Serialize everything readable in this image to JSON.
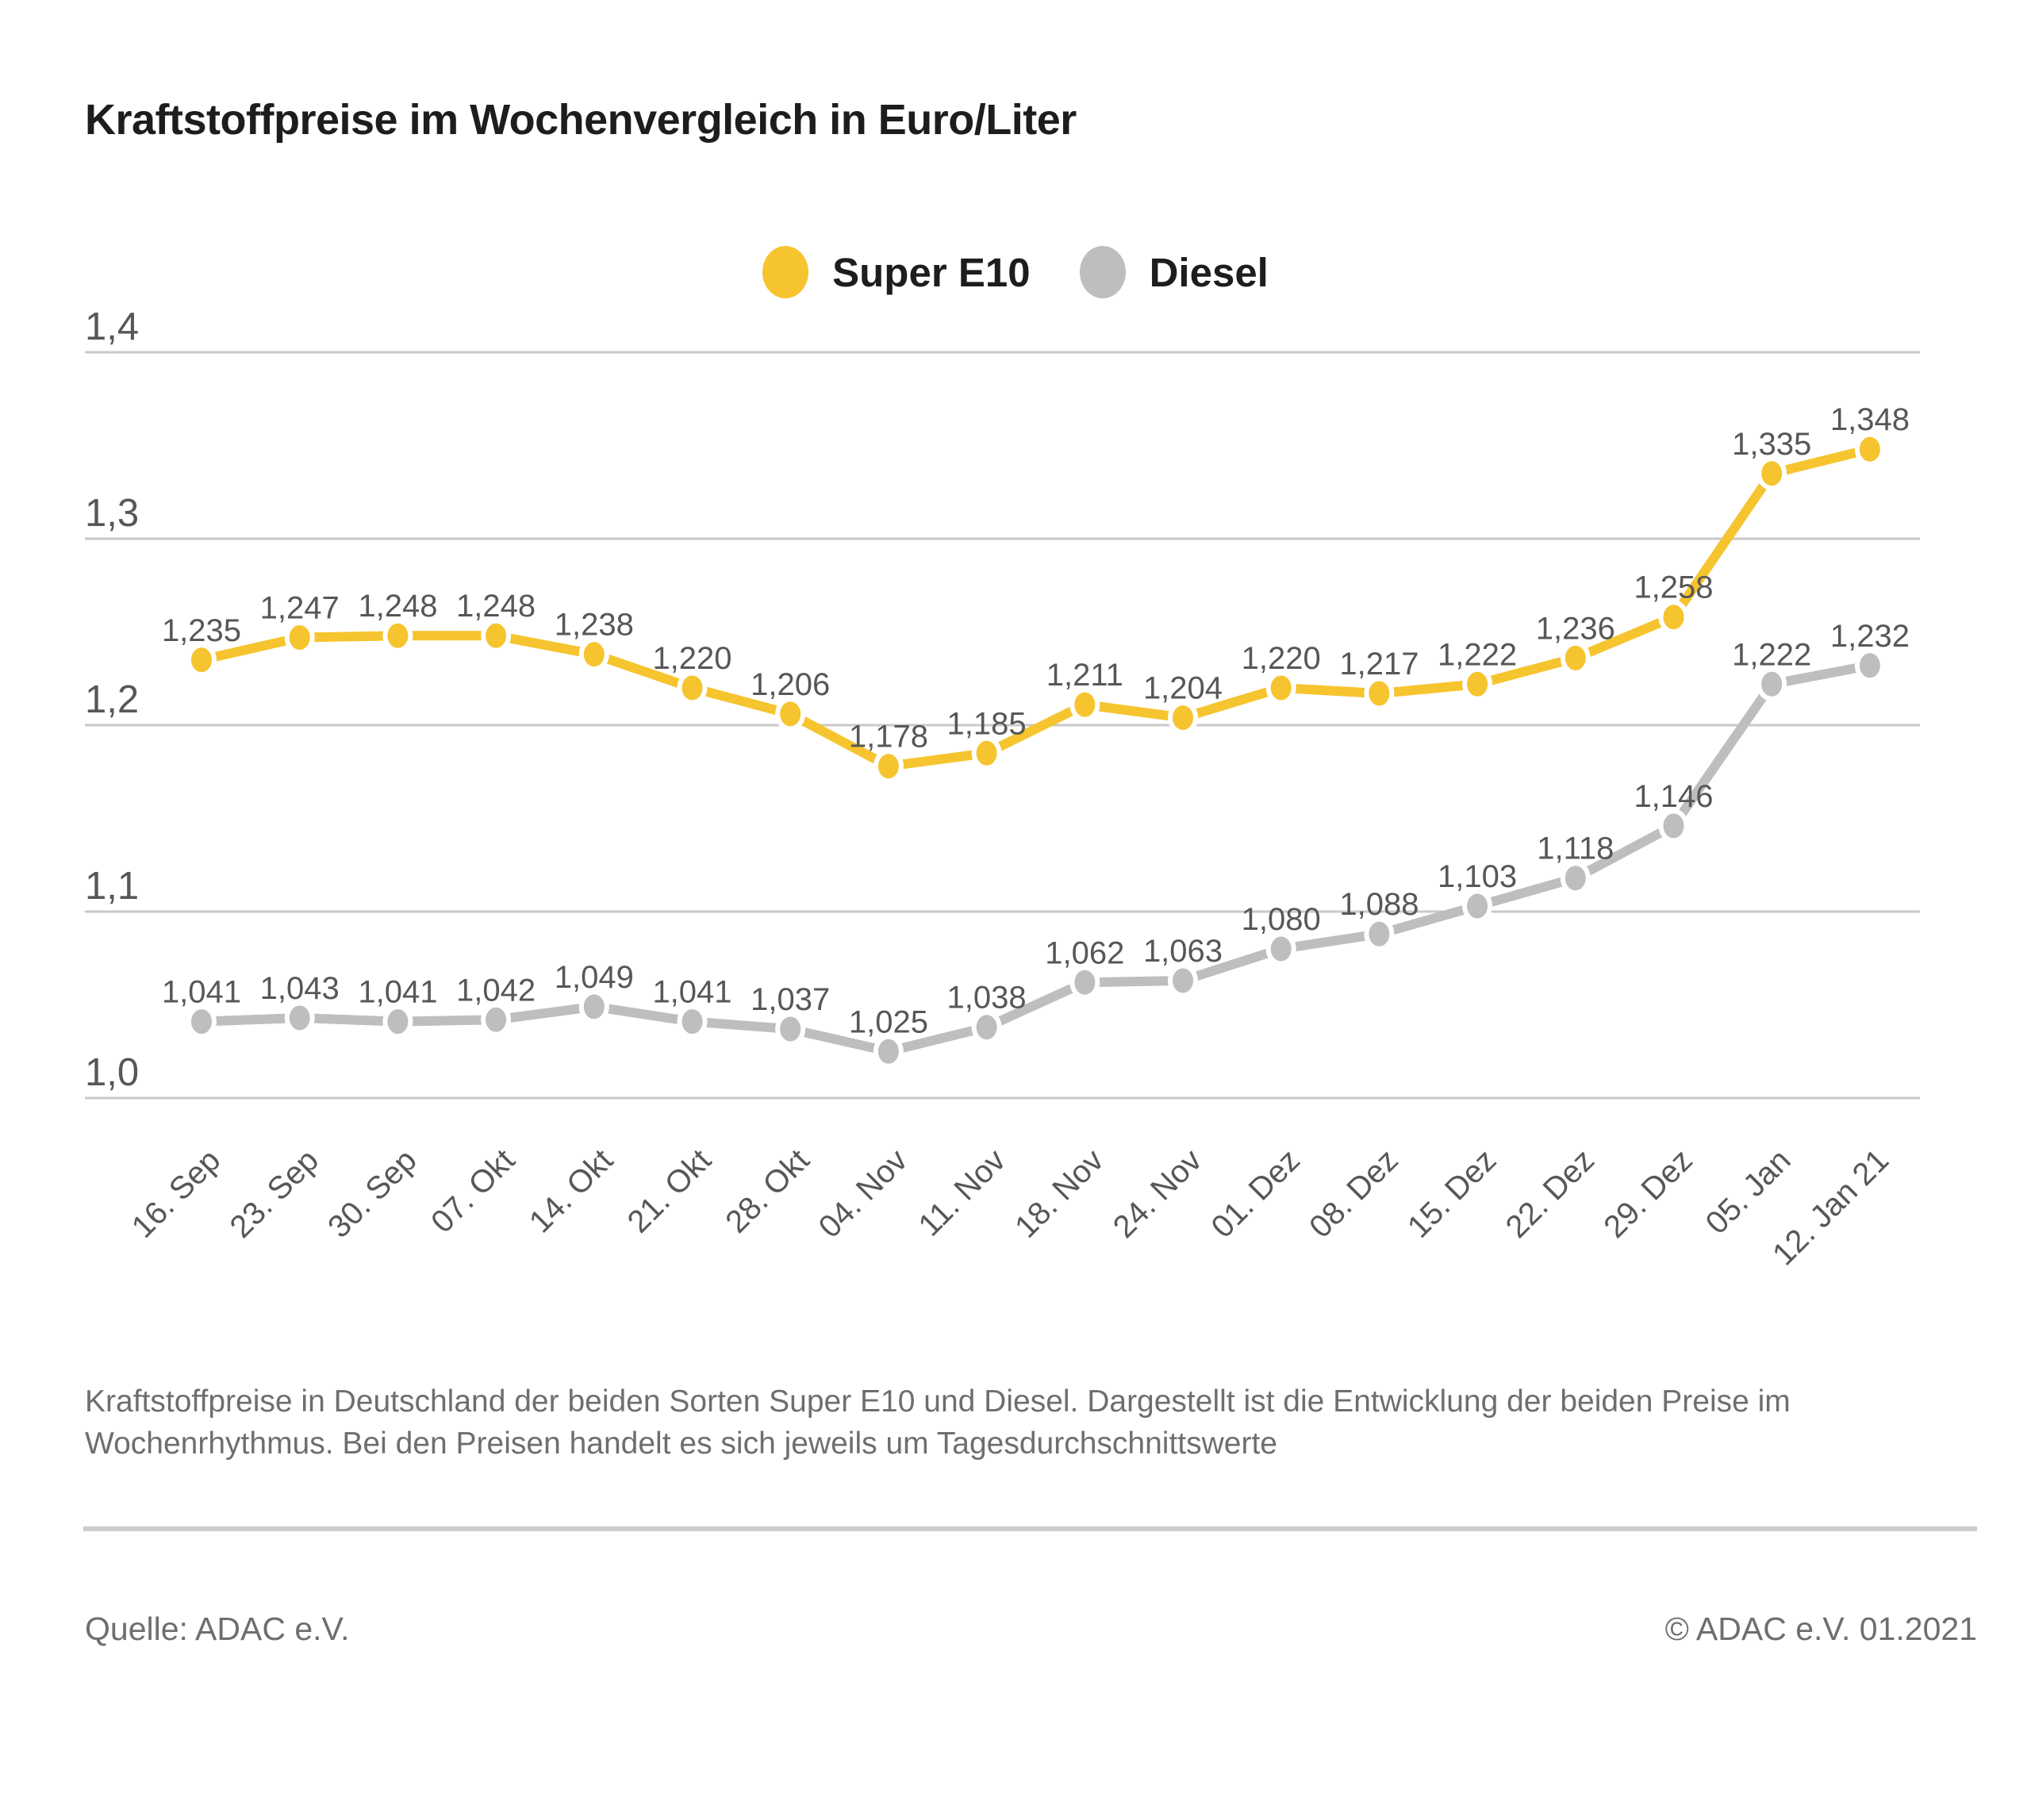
{
  "page": {
    "title": "Kraftstoffpreise im Wochenvergleich in Euro/Liter",
    "caption": "Kraftstoffpreise in Deutschland der beiden Sorten Super E10 und Diesel. Dargestellt ist die Entwicklung der beiden Preise im Wochenrhythmus. Bei den Preisen handelt es sich jeweils um Tagesdurchschnittswerte",
    "source_left": "Quelle: ADAC e.V.",
    "source_right": "© ADAC e.V. 01.2021"
  },
  "colors": {
    "background": "#FFFFFF",
    "title_text": "#1D1D1B",
    "label_text": "#575756",
    "muted_text": "#6F6E6E",
    "grid": "#C9C9C9",
    "divider": "#CDCDCD",
    "super_e10": "#F6C42E",
    "diesel": "#BEBEBE",
    "marker_halo": "#FFFFFF"
  },
  "chart_data": {
    "type": "line",
    "title": "Kraftstoffpreise im Wochenvergleich in Euro/Liter",
    "unit": "Euro/Liter",
    "categories": [
      "16. Sep",
      "23. Sep",
      "30. Sep",
      "07. Okt",
      "14. Okt",
      "21. Okt",
      "28. Okt",
      "04. Nov",
      "11. Nov",
      "18. Nov",
      "24. Nov",
      "01. Dez",
      "08. Dez",
      "15. Dez",
      "22. Dez",
      "29. Dez",
      "05. Jan",
      "12. Jan 21"
    ],
    "series": [
      {
        "name": "Super E10",
        "color": "#F6C42E",
        "values": [
          1.235,
          1.247,
          1.248,
          1.248,
          1.238,
          1.22,
          1.206,
          1.178,
          1.185,
          1.211,
          1.204,
          1.22,
          1.217,
          1.222,
          1.236,
          1.258,
          1.335,
          1.348
        ]
      },
      {
        "name": "Diesel",
        "color": "#BEBEBE",
        "values": [
          1.041,
          1.043,
          1.041,
          1.042,
          1.049,
          1.041,
          1.037,
          1.025,
          1.038,
          1.062,
          1.063,
          1.08,
          1.088,
          1.103,
          1.118,
          1.146,
          1.222,
          1.232
        ]
      }
    ],
    "y_ticks": [
      {
        "value": 1.4,
        "label": "1,4"
      },
      {
        "value": 1.3,
        "label": "1,3"
      },
      {
        "value": 1.2,
        "label": "1,2"
      },
      {
        "value": 1.1,
        "label": "1,1"
      },
      {
        "value": 1.0,
        "label": "1,0"
      }
    ],
    "ylim": [
      1.0,
      1.4
    ],
    "grid": true,
    "legend_position": "top",
    "value_labels": "above points, German decimal comma, 3 decimals",
    "x_label_rotation_deg": -45
  }
}
